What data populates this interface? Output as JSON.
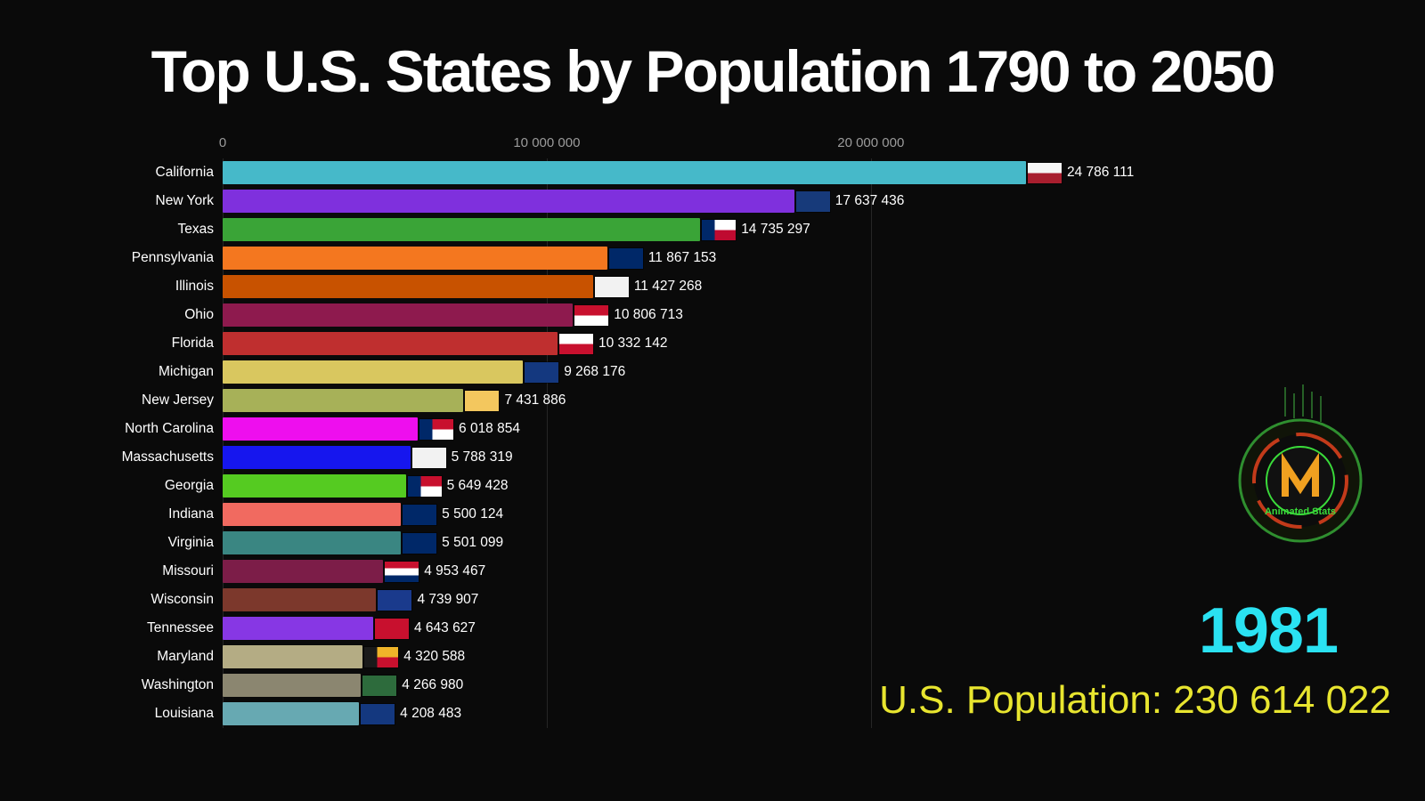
{
  "title": "Top U.S. States by Population 1790 to 2050",
  "year_label": "1981",
  "population_label": "U.S. Population: 230 614 022",
  "logo_text": "Animated Stats",
  "chart_data": {
    "type": "bar",
    "orientation": "horizontal",
    "title": "Top U.S. States by Population 1790 to 2050",
    "year": 1981,
    "us_population": 230614022,
    "xlim": [
      0,
      36000000
    ],
    "grid": true,
    "axis_ticks": [
      {
        "label": "0",
        "value": 0
      },
      {
        "label": "10 000 000",
        "value": 10000000
      },
      {
        "label": "20 000 000",
        "value": 20000000
      }
    ],
    "categories": [
      "California",
      "New York",
      "Texas",
      "Pennsylvania",
      "Illinois",
      "Ohio",
      "Florida",
      "Michigan",
      "New Jersey",
      "North Carolina",
      "Massachusetts",
      "Georgia",
      "Indiana",
      "Virginia",
      "Missouri",
      "Wisconsin",
      "Tennessee",
      "Maryland",
      "Washington",
      "Louisiana"
    ],
    "values": [
      24786111,
      17637436,
      14735297,
      11867153,
      11427268,
      10806713,
      10332142,
      9268176,
      7431886,
      6018854,
      5788319,
      5649428,
      5500124,
      5501099,
      4953467,
      4739907,
      4643627,
      4320588,
      4266980,
      4208483
    ],
    "bars": [
      {
        "state": "California",
        "value": 24786111,
        "value_label": "24 786 111",
        "color": "#46b9c9",
        "flag": {
          "pattern": "h2",
          "colors": [
            "#f5f5f5",
            "#a81e2e"
          ]
        }
      },
      {
        "state": "New York",
        "value": 17637436,
        "value_label": "17 637 436",
        "color": "#7f30dd",
        "flag": {
          "pattern": "solid",
          "colors": [
            "#173a7a"
          ]
        }
      },
      {
        "state": "Texas",
        "value": 14735297,
        "value_label": "14 735 297",
        "color": "#3aa437",
        "flag": {
          "pattern": "vh2",
          "colors": [
            "#002868",
            "#ffffff",
            "#bf0a30"
          ]
        }
      },
      {
        "state": "Pennsylvania",
        "value": 11867153,
        "value_label": "11 867 153",
        "color": "#f4771f",
        "flag": {
          "pattern": "solid",
          "colors": [
            "#002868"
          ]
        }
      },
      {
        "state": "Illinois",
        "value": 11427268,
        "value_label": "11 427 268",
        "color": "#c85200",
        "flag": {
          "pattern": "solid",
          "colors": [
            "#f2f2f2"
          ]
        }
      },
      {
        "state": "Ohio",
        "value": 10806713,
        "value_label": "10 806 713",
        "color": "#8e1a4e",
        "flag": {
          "pattern": "h2",
          "colors": [
            "#c8102e",
            "#ffffff"
          ]
        }
      },
      {
        "state": "Florida",
        "value": 10332142,
        "value_label": "10 332 142",
        "color": "#bf2f2f",
        "flag": {
          "pattern": "h2",
          "colors": [
            "#ffffff",
            "#c8102e"
          ]
        }
      },
      {
        "state": "Michigan",
        "value": 9268176,
        "value_label": "9 268 176",
        "color": "#d9c75f",
        "flag": {
          "pattern": "solid",
          "colors": [
            "#14387f"
          ]
        }
      },
      {
        "state": "New Jersey",
        "value": 7431886,
        "value_label": "7 431 886",
        "color": "#a7b158",
        "flag": {
          "pattern": "solid",
          "colors": [
            "#f3c75e"
          ]
        }
      },
      {
        "state": "North Carolina",
        "value": 6018854,
        "value_label": "6 018 854",
        "color": "#ee0eee",
        "flag": {
          "pattern": "vh2",
          "colors": [
            "#002868",
            "#c8102e",
            "#ffffff"
          ]
        }
      },
      {
        "state": "Massachusetts",
        "value": 5788319,
        "value_label": "5 788 319",
        "color": "#1616ee",
        "flag": {
          "pattern": "solid",
          "colors": [
            "#f2f2f2"
          ]
        }
      },
      {
        "state": "Georgia",
        "value": 5649428,
        "value_label": "5 649 428",
        "color": "#55cb21",
        "flag": {
          "pattern": "vh2",
          "colors": [
            "#002868",
            "#c8102e",
            "#ffffff"
          ]
        }
      },
      {
        "state": "Indiana",
        "value": 5500124,
        "value_label": "5 500 124",
        "color": "#f16a60",
        "flag": {
          "pattern": "solid",
          "colors": [
            "#002868"
          ]
        }
      },
      {
        "state": "Virginia",
        "value": 5501099,
        "value_label": "5 501 099",
        "color": "#3a8682",
        "flag": {
          "pattern": "solid",
          "colors": [
            "#002868"
          ]
        }
      },
      {
        "state": "Missouri",
        "value": 4953467,
        "value_label": "4 953 467",
        "color": "#7c1d48",
        "flag": {
          "pattern": "h3",
          "colors": [
            "#c8102e",
            "#ffffff",
            "#002868"
          ]
        }
      },
      {
        "state": "Wisconsin",
        "value": 4739907,
        "value_label": "4 739 907",
        "color": "#7c382c",
        "flag": {
          "pattern": "solid",
          "colors": [
            "#1a3a8c"
          ]
        }
      },
      {
        "state": "Tennessee",
        "value": 4643627,
        "value_label": "4 643 627",
        "color": "#8737e4",
        "flag": {
          "pattern": "solid",
          "colors": [
            "#c8102e"
          ]
        }
      },
      {
        "state": "Maryland",
        "value": 4320588,
        "value_label": "4 320 588",
        "color": "#b4ac84",
        "flag": {
          "pattern": "vh2",
          "colors": [
            "#1a1a1a",
            "#f0b429",
            "#c8102e"
          ]
        }
      },
      {
        "state": "Washington",
        "value": 4266980,
        "value_label": "4 266 980",
        "color": "#8b8670",
        "flag": {
          "pattern": "solid",
          "colors": [
            "#2d6b3c"
          ]
        }
      },
      {
        "state": "Louisiana",
        "value": 4208483,
        "value_label": "4 208 483",
        "color": "#67a9b2",
        "flag": {
          "pattern": "solid",
          "colors": [
            "#14387f"
          ]
        }
      }
    ]
  }
}
